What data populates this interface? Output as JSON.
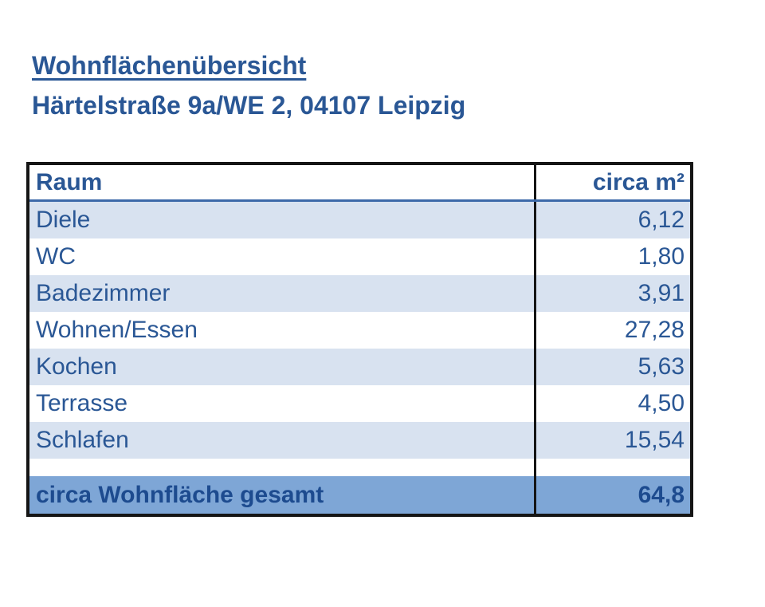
{
  "header": {
    "title": "Wohnflächenübersicht",
    "subtitle": "Härtelstraße 9a/WE 2, 04107 Leipzig"
  },
  "table": {
    "headers": {
      "room": "Raum",
      "area": "circa m²"
    },
    "rows": [
      {
        "room": "Diele",
        "area": "6,12"
      },
      {
        "room": "WC",
        "area": "1,80"
      },
      {
        "room": "Badezimmer",
        "area": "3,91"
      },
      {
        "room": "Wohnen/Essen",
        "area": "27,28"
      },
      {
        "room": "Kochen",
        "area": "5,63"
      },
      {
        "room": "Terrasse",
        "area": "4,50"
      },
      {
        "room": "Schlafen",
        "area": "15,54"
      }
    ],
    "total": {
      "label": "circa Wohnfläche gesamt",
      "area": "64,8"
    }
  },
  "colors": {
    "accent_text": "#2A5795",
    "total_text": "#1D4B8F",
    "alt_row_bg": "#D8E2F0",
    "total_row_bg": "#7EA6D6",
    "header_rule": "#3C69A9",
    "table_border": "#151515"
  }
}
